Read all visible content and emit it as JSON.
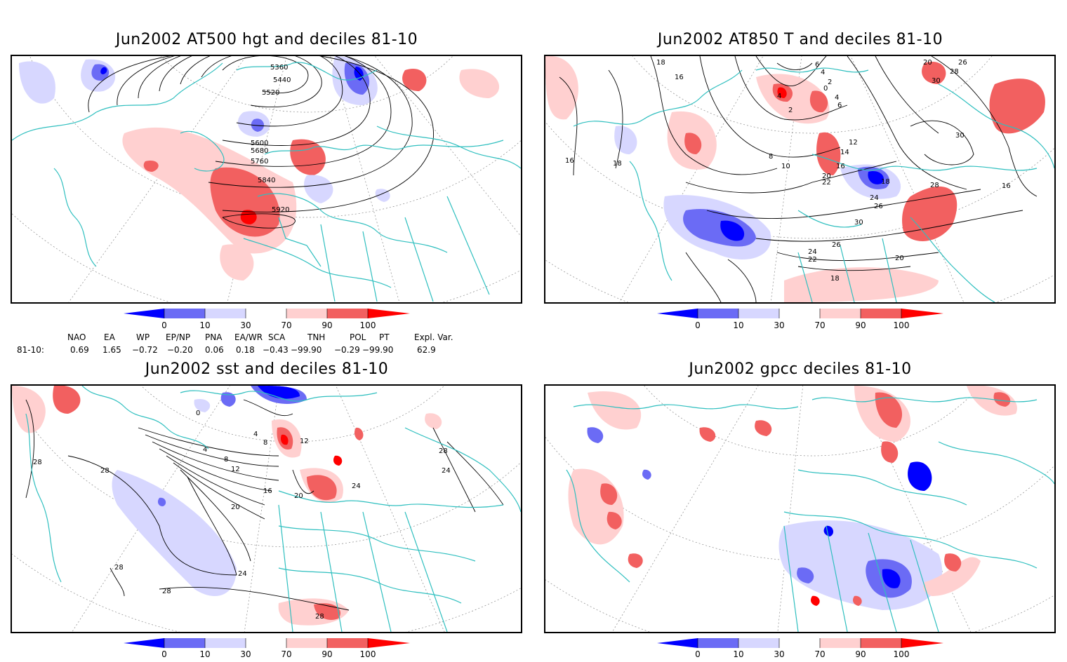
{
  "panels": [
    {
      "title": "Jun2002 AT500 hgt and deciles 81-10",
      "contour_labels": [
        "5360",
        "5440",
        "5520",
        "5600",
        "5680",
        "5760",
        "5840",
        "5920"
      ]
    },
    {
      "title": "Jun2002 AT850 T and deciles 81-10",
      "contour_labels": [
        "18",
        "16",
        "6",
        "4",
        "2",
        "0",
        "4",
        "6",
        "2",
        "4",
        "20",
        "26",
        "28",
        "30",
        "8",
        "10",
        "12",
        "14",
        "16",
        "18",
        "20",
        "22",
        "24",
        "26",
        "28",
        "30",
        "24",
        "22",
        "20",
        "18",
        "26",
        "16",
        "18",
        "16",
        "30"
      ]
    },
    {
      "title": "Jun2002 sst and deciles 81-10",
      "contour_labels": [
        "28",
        "28",
        "4",
        "8",
        "12",
        "16",
        "20",
        "24",
        "28",
        "28",
        "24",
        "20",
        "28",
        "0",
        "4",
        "8",
        "12",
        "28",
        "24"
      ]
    },
    {
      "title": "Jun2002 gpcc deciles 81-10",
      "contour_labels": []
    }
  ],
  "colorbar": {
    "ticks": [
      "0",
      "10",
      "30",
      "70",
      "90",
      "100"
    ],
    "colors": [
      "#0000ff",
      "#6b6bf5",
      "#d7d7ff",
      "#ffffff",
      "#ffd0d0",
      "#f26060",
      "#ff0000"
    ]
  },
  "indices": {
    "headers": [
      "NAO",
      "EA",
      "WP",
      "EP/NP",
      "PNA",
      "EA/WR",
      "SCA",
      "TNH",
      "POL",
      "PT",
      "Expl. Var."
    ],
    "row_label": "81-10:",
    "values": [
      "0.69",
      "1.65",
      "−0.72",
      "−0.20",
      "0.06",
      "0.18",
      "−0.43",
      "−99.90",
      "−0.29",
      "−99.90",
      "62.9"
    ]
  }
}
